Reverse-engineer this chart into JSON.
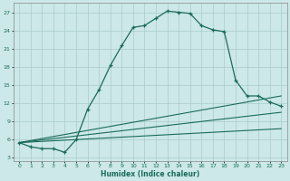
{
  "xlabel": "Humidex (Indice chaleur)",
  "bg_color": "#cce8e8",
  "grid_color": "#aacccc",
  "line_color": "#1a6b5a",
  "xlim": [
    -0.5,
    23.5
  ],
  "ylim": [
    2.5,
    28.5
  ],
  "xticks": [
    0,
    1,
    2,
    3,
    4,
    5,
    6,
    7,
    8,
    9,
    10,
    11,
    12,
    13,
    14,
    15,
    16,
    17,
    18,
    19,
    20,
    21,
    22,
    23
  ],
  "yticks": [
    3,
    6,
    9,
    12,
    15,
    18,
    21,
    24,
    27
  ],
  "curve1_x": [
    0,
    1,
    2,
    3,
    4,
    5,
    6,
    7,
    8,
    9,
    10,
    11,
    12,
    13,
    14,
    15,
    16,
    17,
    18,
    19,
    20,
    21,
    22,
    23
  ],
  "curve1_y": [
    5.5,
    4.8,
    4.5,
    4.5,
    3.9,
    6.0,
    11.0,
    14.2,
    18.2,
    21.5,
    24.5,
    24.8,
    26.0,
    27.2,
    27.0,
    26.8,
    24.8,
    24.1,
    23.8,
    15.8,
    13.2,
    13.2,
    12.2,
    11.5
  ],
  "line1_x": [
    0,
    23
  ],
  "line1_y": [
    5.5,
    13.2
  ],
  "line2_x": [
    0,
    23
  ],
  "line2_y": [
    5.5,
    10.5
  ],
  "line3_x": [
    0,
    23
  ],
  "line3_y": [
    5.5,
    7.8
  ]
}
